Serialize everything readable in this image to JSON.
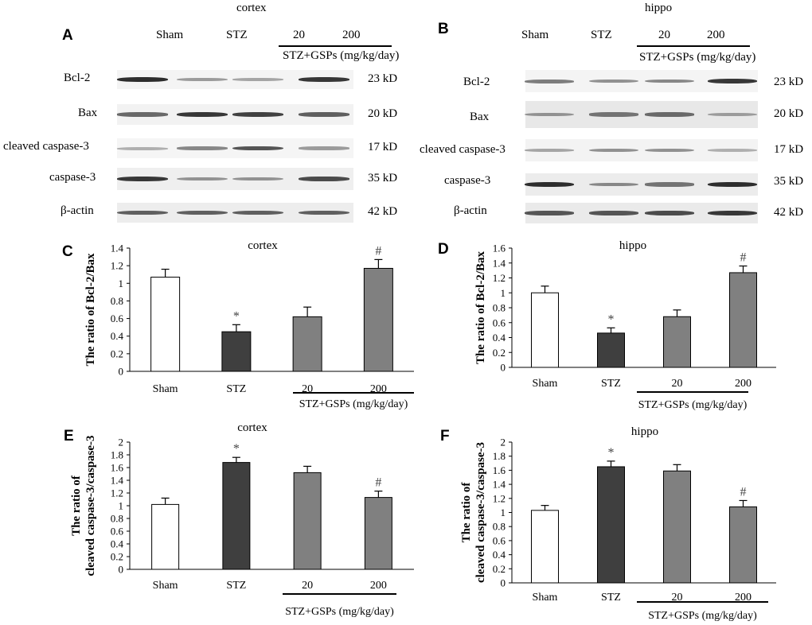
{
  "panels": {
    "A": "A",
    "B": "B",
    "C": "C",
    "D": "D",
    "E": "E",
    "F": "F"
  },
  "blots": {
    "A": {
      "title": "cortex",
      "lanes": [
        "Sham",
        "STZ",
        "20",
        "200"
      ],
      "group_label": "STZ+GSPs (mg/kg/day)",
      "rows": [
        {
          "label": "Bcl-2",
          "size": "23 kD",
          "intensity": [
            0.9,
            0.35,
            0.3,
            0.85
          ]
        },
        {
          "label": "Bax",
          "size": "20 kD",
          "intensity": [
            0.6,
            0.85,
            0.8,
            0.65
          ]
        },
        {
          "label": "cleaved caspase-3",
          "size": "17 kD",
          "intensity": [
            0.25,
            0.45,
            0.7,
            0.35
          ]
        },
        {
          "label": "caspase-3",
          "size": "35 kD",
          "intensity": [
            0.85,
            0.4,
            0.4,
            0.75
          ]
        },
        {
          "label": "β-actin",
          "size": "42 kD",
          "intensity": [
            0.65,
            0.65,
            0.65,
            0.65
          ]
        }
      ]
    },
    "B": {
      "title": "hippo",
      "lanes": [
        "Sham",
        "STZ",
        "20",
        "200"
      ],
      "group_label": "STZ+GSPs (mg/kg/day)",
      "rows": [
        {
          "label": "Bcl-2",
          "size": "23 kD",
          "intensity": [
            0.5,
            0.4,
            0.45,
            0.85
          ]
        },
        {
          "label": "Bax",
          "size": "20 kD",
          "intensity": [
            0.4,
            0.55,
            0.6,
            0.35
          ]
        },
        {
          "label": "cleaved caspase-3",
          "size": "17 kD",
          "intensity": [
            0.3,
            0.4,
            0.4,
            0.25
          ]
        },
        {
          "label": "caspase-3",
          "size": "35 kD",
          "intensity": [
            0.9,
            0.45,
            0.55,
            0.9
          ]
        },
        {
          "label": "β-actin",
          "size": "42 kD",
          "intensity": [
            0.7,
            0.7,
            0.75,
            0.85
          ]
        }
      ]
    }
  },
  "chart_data": [
    {
      "id": "C",
      "type": "bar",
      "title": "cortex",
      "ylabel": "The ratio of Bcl-2/Bax",
      "categories": [
        "Sham",
        "STZ",
        "20",
        "200"
      ],
      "values": [
        1.07,
        0.45,
        0.62,
        1.17
      ],
      "errors": [
        0.09,
        0.08,
        0.11,
        0.1
      ],
      "colors": [
        "#ffffff",
        "#3f3f3f",
        "#808080",
        "#808080"
      ],
      "annotations": [
        "",
        "*",
        "",
        "#"
      ],
      "ylim": [
        0,
        1.4
      ],
      "yticks": [
        "0",
        "0.2",
        "0.4",
        "0.6",
        "0.8",
        "1",
        "1.2",
        "1.4"
      ],
      "group_label": "STZ+GSPs (mg/kg/day)"
    },
    {
      "id": "D",
      "type": "bar",
      "title": "hippo",
      "ylabel": "The ratio of Bcl-2/Bax",
      "categories": [
        "Sham",
        "STZ",
        "20",
        "200"
      ],
      "values": [
        1.0,
        0.46,
        0.68,
        1.27
      ],
      "errors": [
        0.09,
        0.07,
        0.09,
        0.09
      ],
      "colors": [
        "#ffffff",
        "#3f3f3f",
        "#808080",
        "#808080"
      ],
      "annotations": [
        "",
        "*",
        "",
        "#"
      ],
      "ylim": [
        0,
        1.6
      ],
      "yticks": [
        "0",
        "0.2",
        "0.4",
        "0.6",
        "0.8",
        "1",
        "1.2",
        "1.4",
        "1.6"
      ],
      "group_label": "STZ+GSPs (mg/kg/day)"
    },
    {
      "id": "E",
      "type": "bar",
      "title": "cortex",
      "ylabel": "The ratio of\ncleaved caspase-3/caspase-3",
      "categories": [
        "Sham",
        "STZ",
        "20",
        "200"
      ],
      "values": [
        1.02,
        1.68,
        1.52,
        1.13
      ],
      "errors": [
        0.1,
        0.08,
        0.1,
        0.1
      ],
      "colors": [
        "#ffffff",
        "#3f3f3f",
        "#808080",
        "#808080"
      ],
      "annotations": [
        "",
        "*",
        "",
        "#"
      ],
      "ylim": [
        0,
        2
      ],
      "yticks": [
        "0",
        "0.2",
        "0.4",
        "0.6",
        "0.8",
        "1",
        "1.2",
        "1.4",
        "1.6",
        "1.8",
        "2"
      ],
      "group_label": "STZ+GSPs (mg/kg/day)"
    },
    {
      "id": "F",
      "type": "bar",
      "title": "hippo",
      "ylabel": "The ratio of\ncleaved caspase-3/caspase-3",
      "categories": [
        "Sham",
        "STZ",
        "20",
        "200"
      ],
      "values": [
        1.03,
        1.65,
        1.59,
        1.08
      ],
      "errors": [
        0.07,
        0.08,
        0.09,
        0.09
      ],
      "colors": [
        "#ffffff",
        "#3f3f3f",
        "#808080",
        "#808080"
      ],
      "annotations": [
        "",
        "*",
        "",
        "#"
      ],
      "ylim": [
        0,
        2
      ],
      "yticks": [
        "0",
        "0.2",
        "0.4",
        "0.6",
        "0.8",
        "1",
        "1.2",
        "1.4",
        "1.6",
        "1.8",
        "2"
      ],
      "group_label": "STZ+GSPs (mg/kg/day)"
    }
  ]
}
